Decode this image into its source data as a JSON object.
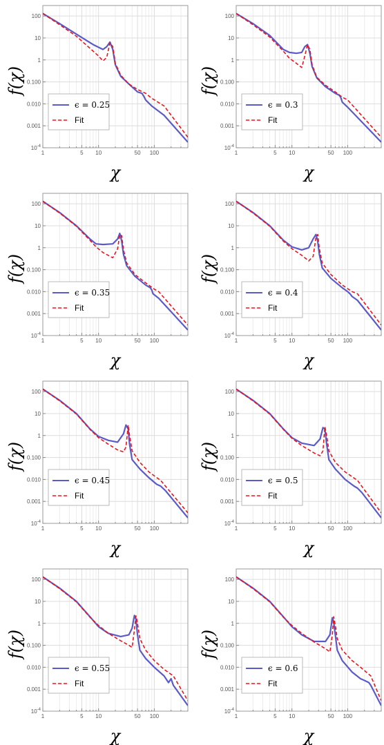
{
  "chart_data": [
    {
      "type": "line",
      "panel": "top-left",
      "x_scale": "log",
      "y_scale": "log",
      "xlim": [
        1,
        400
      ],
      "ylim": [
        0.0001,
        300
      ],
      "xlabel": "χ",
      "ylabel": "f(χ)",
      "x_ticks": [
        "1",
        "5",
        "10",
        "50",
        "100"
      ],
      "y_ticks": [
        "10^-4",
        "0.001",
        "0.010",
        "0.100",
        "1",
        "10",
        "100"
      ],
      "legend": {
        "placement": "bottom-left",
        "entries": [
          {
            "label": "ϵ = 0.25",
            "style": "solid",
            "color": "#5a5ac8"
          },
          {
            "label": "Fit",
            "style": "dashed",
            "color": "#e8141e"
          }
        ]
      },
      "series": [
        {
          "name": "ϵ = 0.25",
          "x": [
            1,
            2,
            4,
            8,
            12,
            14,
            16,
            18,
            20,
            25,
            35,
            50,
            60,
            65,
            70,
            90,
            150,
            400
          ],
          "y": [
            130,
            45,
            15,
            5,
            3,
            4,
            6.5,
            3,
            0.6,
            0.18,
            0.08,
            0.035,
            0.03,
            0.022,
            0.015,
            0.008,
            0.003,
            0.00018
          ]
        },
        {
          "name": "Fit",
          "x": [
            1,
            2,
            4,
            8,
            10,
            12,
            14,
            16,
            18,
            20,
            25,
            35,
            50,
            70,
            90,
            150,
            400
          ],
          "y": [
            130,
            40,
            12,
            2.5,
            1.5,
            0.9,
            1.3,
            6,
            4,
            0.7,
            0.2,
            0.08,
            0.045,
            0.03,
            0.018,
            0.008,
            0.0003
          ]
        }
      ]
    },
    {
      "type": "line",
      "panel": "top-right",
      "x_scale": "log",
      "y_scale": "log",
      "xlim": [
        1,
        400
      ],
      "ylim": [
        0.0001,
        300
      ],
      "xlabel": "χ",
      "ylabel": "f(χ)",
      "x_ticks": [
        "1",
        "5",
        "10",
        "50",
        "100"
      ],
      "y_ticks": [
        "10^-4",
        "0.001",
        "0.010",
        "0.100",
        "1",
        "10",
        "100"
      ],
      "legend": {
        "placement": "bottom-left",
        "entries": [
          {
            "label": "ϵ = 0.3",
            "style": "solid",
            "color": "#5a5ac8"
          },
          {
            "label": "Fit",
            "style": "dashed",
            "color": "#e8141e"
          }
        ]
      },
      "series": [
        {
          "name": "ϵ = 0.3",
          "x": [
            1,
            2,
            4,
            7,
            9,
            12,
            15,
            17,
            19,
            21,
            23,
            28,
            40,
            60,
            70,
            75,
            80,
            100,
            400
          ],
          "y": [
            130,
            45,
            13,
            3,
            2.2,
            2,
            2.2,
            4,
            5,
            2,
            0.5,
            0.15,
            0.06,
            0.03,
            0.025,
            0.02,
            0.012,
            0.007,
            0.00018
          ]
        },
        {
          "name": "Fit",
          "x": [
            1,
            2,
            4,
            7,
            9,
            12,
            15,
            17,
            19,
            21,
            23,
            28,
            40,
            60,
            80,
            100,
            400
          ],
          "y": [
            130,
            40,
            11,
            2.5,
            1.2,
            0.7,
            0.45,
            1.5,
            5,
            3,
            0.6,
            0.16,
            0.07,
            0.035,
            0.02,
            0.015,
            0.0003
          ]
        }
      ]
    },
    {
      "type": "line",
      "panel": "row2-left",
      "x_scale": "log",
      "y_scale": "log",
      "xlim": [
        1,
        400
      ],
      "ylim": [
        0.0001,
        300
      ],
      "xlabel": "χ",
      "ylabel": "f(χ)",
      "x_ticks": [
        "1",
        "5",
        "10",
        "50",
        "100"
      ],
      "y_ticks": [
        "10^-4",
        "0.001",
        "0.010",
        "0.100",
        "1",
        "10",
        "100"
      ],
      "legend": {
        "placement": "bottom-left",
        "entries": [
          {
            "label": "ϵ = 0.35",
            "style": "solid",
            "color": "#5a5ac8"
          },
          {
            "label": "Fit",
            "style": "dashed",
            "color": "#e8141e"
          }
        ]
      },
      "series": [
        {
          "name": "ϵ = 0.35",
          "x": [
            1,
            2,
            4,
            7,
            9,
            12,
            18,
            22,
            24,
            26,
            28,
            32,
            45,
            70,
            85,
            90,
            95,
            120,
            400
          ],
          "y": [
            130,
            40,
            10,
            2.5,
            1.5,
            1.4,
            1.5,
            2.5,
            4.5,
            2,
            0.5,
            0.15,
            0.05,
            0.02,
            0.015,
            0.012,
            0.008,
            0.005,
            0.00018
          ]
        },
        {
          "name": "Fit",
          "x": [
            1,
            2,
            4,
            7,
            9,
            12,
            18,
            22,
            24,
            26,
            28,
            32,
            45,
            70,
            100,
            120,
            400
          ],
          "y": [
            130,
            38,
            9.5,
            2.2,
            1.1,
            0.6,
            0.35,
            0.9,
            4,
            3.5,
            0.8,
            0.2,
            0.06,
            0.025,
            0.013,
            0.01,
            0.0003
          ]
        }
      ]
    },
    {
      "type": "line",
      "panel": "row2-right",
      "x_scale": "log",
      "y_scale": "log",
      "xlim": [
        1,
        400
      ],
      "ylim": [
        0.0001,
        300
      ],
      "xlabel": "χ",
      "ylabel": "f(χ)",
      "x_ticks": [
        "1",
        "5",
        "10",
        "50",
        "100"
      ],
      "y_ticks": [
        "10^-4",
        "0.001",
        "0.010",
        "0.100",
        "1",
        "10",
        "100"
      ],
      "legend": {
        "placement": "bottom-left",
        "entries": [
          {
            "label": "ϵ = 0.4",
            "style": "solid",
            "color": "#5a5ac8"
          },
          {
            "label": "Fit",
            "style": "dashed",
            "color": "#e8141e"
          }
        ]
      },
      "series": [
        {
          "name": "ϵ = 0.4",
          "x": [
            1,
            2,
            4,
            7,
            10,
            15,
            20,
            24,
            27,
            29,
            31,
            35,
            50,
            80,
            100,
            110,
            120,
            150,
            400
          ],
          "y": [
            130,
            40,
            10,
            2.2,
            1.1,
            0.8,
            1,
            2.5,
            4,
            2,
            0.5,
            0.12,
            0.04,
            0.015,
            0.01,
            0.008,
            0.006,
            0.004,
            0.00018
          ]
        },
        {
          "name": "Fit",
          "x": [
            1,
            2,
            4,
            7,
            10,
            15,
            20,
            24,
            27,
            29,
            31,
            35,
            50,
            80,
            120,
            150,
            400
          ],
          "y": [
            130,
            38,
            9.5,
            2,
            0.9,
            0.45,
            0.25,
            0.4,
            3,
            4,
            0.9,
            0.2,
            0.06,
            0.02,
            0.01,
            0.008,
            0.0003
          ]
        }
      ]
    },
    {
      "type": "line",
      "panel": "row3-left",
      "x_scale": "log",
      "y_scale": "log",
      "xlim": [
        1,
        400
      ],
      "ylim": [
        0.0001,
        300
      ],
      "xlabel": "χ",
      "ylabel": "f(χ)",
      "x_ticks": [
        "1",
        "5",
        "10",
        "50",
        "100"
      ],
      "y_ticks": [
        "10^-4",
        "0.001",
        "0.010",
        "0.100",
        "1",
        "10",
        "100"
      ],
      "legend": {
        "placement": "bottom-left",
        "entries": [
          {
            "label": "ϵ = 0.45",
            "style": "solid",
            "color": "#5a5ac8"
          },
          {
            "label": "Fit",
            "style": "dashed",
            "color": "#e8141e"
          }
        ]
      },
      "series": [
        {
          "name": "ϵ = 0.45",
          "x": [
            1,
            2,
            4,
            7,
            10,
            15,
            22,
            28,
            31,
            34,
            36,
            40,
            55,
            80,
            110,
            130,
            160,
            400
          ],
          "y": [
            130,
            40,
            10,
            2,
            0.9,
            0.6,
            0.5,
            1.2,
            3,
            2,
            0.4,
            0.08,
            0.03,
            0.012,
            0.006,
            0.005,
            0.003,
            0.00018
          ]
        },
        {
          "name": "Fit",
          "x": [
            1,
            2,
            4,
            7,
            10,
            15,
            22,
            28,
            31,
            34,
            36,
            40,
            55,
            80,
            130,
            400
          ],
          "y": [
            130,
            38,
            9.5,
            1.9,
            0.8,
            0.4,
            0.22,
            0.18,
            0.3,
            3,
            1,
            0.2,
            0.06,
            0.022,
            0.009,
            0.0003
          ]
        }
      ]
    },
    {
      "type": "line",
      "panel": "row3-right",
      "x_scale": "log",
      "y_scale": "log",
      "xlim": [
        1,
        400
      ],
      "ylim": [
        0.0001,
        300
      ],
      "xlabel": "χ",
      "ylabel": "f(χ)",
      "x_ticks": [
        "1",
        "5",
        "10",
        "50",
        "100"
      ],
      "y_ticks": [
        "10^-4",
        "0.001",
        "0.010",
        "0.100",
        "1",
        "10",
        "100"
      ],
      "legend": {
        "placement": "bottom-left",
        "entries": [
          {
            "label": "ϵ = 0.5",
            "style": "solid",
            "color": "#5a5ac8"
          },
          {
            "label": "Fit",
            "style": "dashed",
            "color": "#e8141e"
          }
        ]
      },
      "series": [
        {
          "name": "ϵ = 0.5",
          "x": [
            1,
            2,
            4,
            7,
            10,
            15,
            25,
            32,
            36,
            39,
            42,
            46,
            60,
            90,
            130,
            150,
            180,
            400
          ],
          "y": [
            130,
            40,
            10,
            2,
            0.8,
            0.45,
            0.35,
            0.7,
            2.3,
            2,
            0.4,
            0.08,
            0.03,
            0.01,
            0.005,
            0.004,
            0.0025,
            0.00018
          ]
        },
        {
          "name": "Fit",
          "x": [
            1,
            2,
            4,
            7,
            10,
            15,
            25,
            32,
            36,
            39,
            42,
            46,
            60,
            90,
            150,
            400
          ],
          "y": [
            130,
            38,
            9.5,
            1.9,
            0.75,
            0.35,
            0.16,
            0.12,
            0.2,
            2.5,
            1,
            0.2,
            0.06,
            0.022,
            0.009,
            0.0003
          ]
        }
      ]
    },
    {
      "type": "line",
      "panel": "bottom-left",
      "x_scale": "log",
      "y_scale": "log",
      "xlim": [
        1,
        400
      ],
      "ylim": [
        0.0001,
        300
      ],
      "xlabel": "χ",
      "ylabel": "f(χ)",
      "x_ticks": [
        "1",
        "5",
        "10",
        "50",
        "100"
      ],
      "y_ticks": [
        "10^-4",
        "0.001",
        "0.010",
        "0.100",
        "1",
        "10",
        "100"
      ],
      "legend": {
        "placement": "bottom-left",
        "entries": [
          {
            "label": "ϵ = 0.55",
            "style": "solid",
            "color": "#5a5ac8"
          },
          {
            "label": "Fit",
            "style": "dashed",
            "color": "#e8141e"
          }
        ]
      },
      "series": [
        {
          "name": "ϵ = 0.55",
          "x": [
            1,
            2,
            4,
            7,
            10,
            15,
            25,
            35,
            40,
            44,
            47,
            50,
            55,
            70,
            100,
            150,
            180,
            200,
            220,
            400
          ],
          "y": [
            130,
            40,
            10,
            2,
            0.7,
            0.35,
            0.25,
            0.3,
            0.6,
            2.3,
            1.5,
            0.3,
            0.06,
            0.025,
            0.01,
            0.004,
            0.002,
            0.003,
            0.0015,
            0.00018
          ]
        },
        {
          "name": "Fit",
          "x": [
            1,
            2,
            4,
            7,
            10,
            15,
            25,
            35,
            40,
            44,
            47,
            50,
            55,
            70,
            100,
            150,
            220,
            400
          ],
          "y": [
            130,
            38,
            9.5,
            1.9,
            0.8,
            0.35,
            0.16,
            0.1,
            0.08,
            0.5,
            2.2,
            1,
            0.2,
            0.06,
            0.02,
            0.008,
            0.004,
            0.0003
          ]
        }
      ]
    },
    {
      "type": "line",
      "panel": "bottom-right",
      "x_scale": "log",
      "y_scale": "log",
      "xlim": [
        1,
        400
      ],
      "ylim": [
        0.0001,
        300
      ],
      "xlabel": "χ",
      "ylabel": "f(χ)",
      "x_ticks": [
        "1",
        "5",
        "10",
        "50",
        "100"
      ],
      "y_ticks": [
        "10^-4",
        "0.001",
        "0.010",
        "0.100",
        "1",
        "10",
        "100"
      ],
      "legend": {
        "placement": "bottom-left",
        "entries": [
          {
            "label": "ϵ = 0.6",
            "style": "solid",
            "color": "#5a5ac8"
          },
          {
            "label": "Fit",
            "style": "dashed",
            "color": "#e8141e"
          }
        ]
      },
      "series": [
        {
          "name": "ϵ = 0.6",
          "x": [
            1,
            2,
            4,
            7,
            10,
            15,
            25,
            40,
            48,
            53,
            56,
            60,
            65,
            80,
            120,
            170,
            200,
            240,
            260,
            400
          ],
          "y": [
            130,
            40,
            10,
            2,
            0.7,
            0.3,
            0.15,
            0.15,
            0.3,
            1.8,
            1.2,
            0.3,
            0.06,
            0.02,
            0.006,
            0.003,
            0.0025,
            0.002,
            0.0015,
            0.00018
          ]
        },
        {
          "name": "Fit",
          "x": [
            1,
            2,
            4,
            7,
            10,
            15,
            25,
            40,
            48,
            53,
            56,
            60,
            65,
            80,
            120,
            170,
            260,
            400
          ],
          "y": [
            130,
            38,
            9.5,
            1.9,
            0.8,
            0.35,
            0.14,
            0.07,
            0.05,
            0.3,
            2,
            0.8,
            0.2,
            0.06,
            0.02,
            0.01,
            0.004,
            0.0003
          ]
        }
      ]
    }
  ]
}
